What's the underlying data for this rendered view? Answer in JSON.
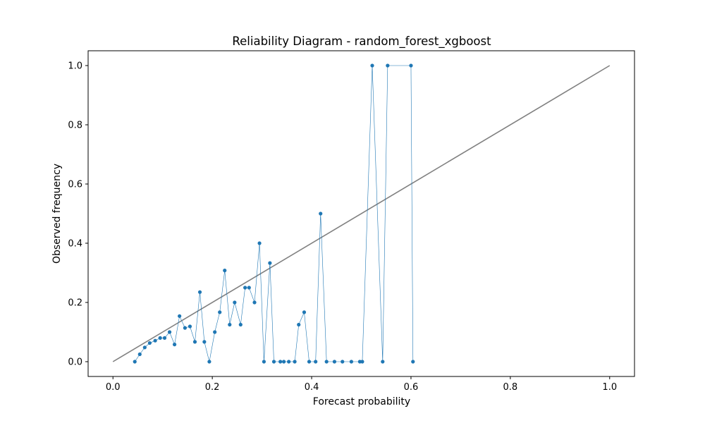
{
  "chart_data": {
    "type": "line",
    "title": "Reliability Diagram - random_forest_xgboost",
    "xlabel": "Forecast probability",
    "ylabel": "Observed frequency",
    "xlim": [
      -0.05,
      1.05
    ],
    "ylim": [
      -0.05,
      1.05
    ],
    "xticks": [
      "0.0",
      "0.2",
      "0.4",
      "0.6",
      "0.8",
      "1.0"
    ],
    "yticks": [
      "0.0",
      "0.2",
      "0.4",
      "0.6",
      "0.8",
      "1.0"
    ],
    "grid": false,
    "legend": "none",
    "series": [
      {
        "style": "line",
        "color": "#808080",
        "x": [
          0.0,
          1.0
        ],
        "y": [
          0.0,
          1.0
        ]
      },
      {
        "style": "line-markers",
        "color": "#1f77b4",
        "x": [
          0.044,
          0.054,
          0.064,
          0.074,
          0.085,
          0.095,
          0.104,
          0.114,
          0.124,
          0.134,
          0.145,
          0.155,
          0.165,
          0.175,
          0.184,
          0.194,
          0.205,
          0.215,
          0.225,
          0.235,
          0.245,
          0.257,
          0.266,
          0.274,
          0.285,
          0.295,
          0.304,
          0.316,
          0.324,
          0.337,
          0.344,
          0.354,
          0.366,
          0.374,
          0.385,
          0.395,
          0.408,
          0.418,
          0.43,
          0.446,
          0.462,
          0.48,
          0.497,
          0.502,
          0.522,
          0.543,
          0.553,
          0.6,
          0.604
        ],
        "y": [
          0.0,
          0.025,
          0.048,
          0.063,
          0.071,
          0.08,
          0.08,
          0.1,
          0.058,
          0.154,
          0.114,
          0.119,
          0.067,
          0.235,
          0.067,
          0.0,
          0.1,
          0.167,
          0.308,
          0.125,
          0.2,
          0.125,
          0.25,
          0.25,
          0.2,
          0.4,
          0.0,
          0.333,
          0.0,
          0.0,
          0.0,
          0.0,
          0.0,
          0.125,
          0.167,
          0.0,
          0.0,
          0.5,
          0.0,
          0.0,
          0.0,
          0.0,
          0.0,
          0.0,
          1.0,
          0.0,
          1.0,
          1.0,
          0.0
        ]
      }
    ]
  }
}
